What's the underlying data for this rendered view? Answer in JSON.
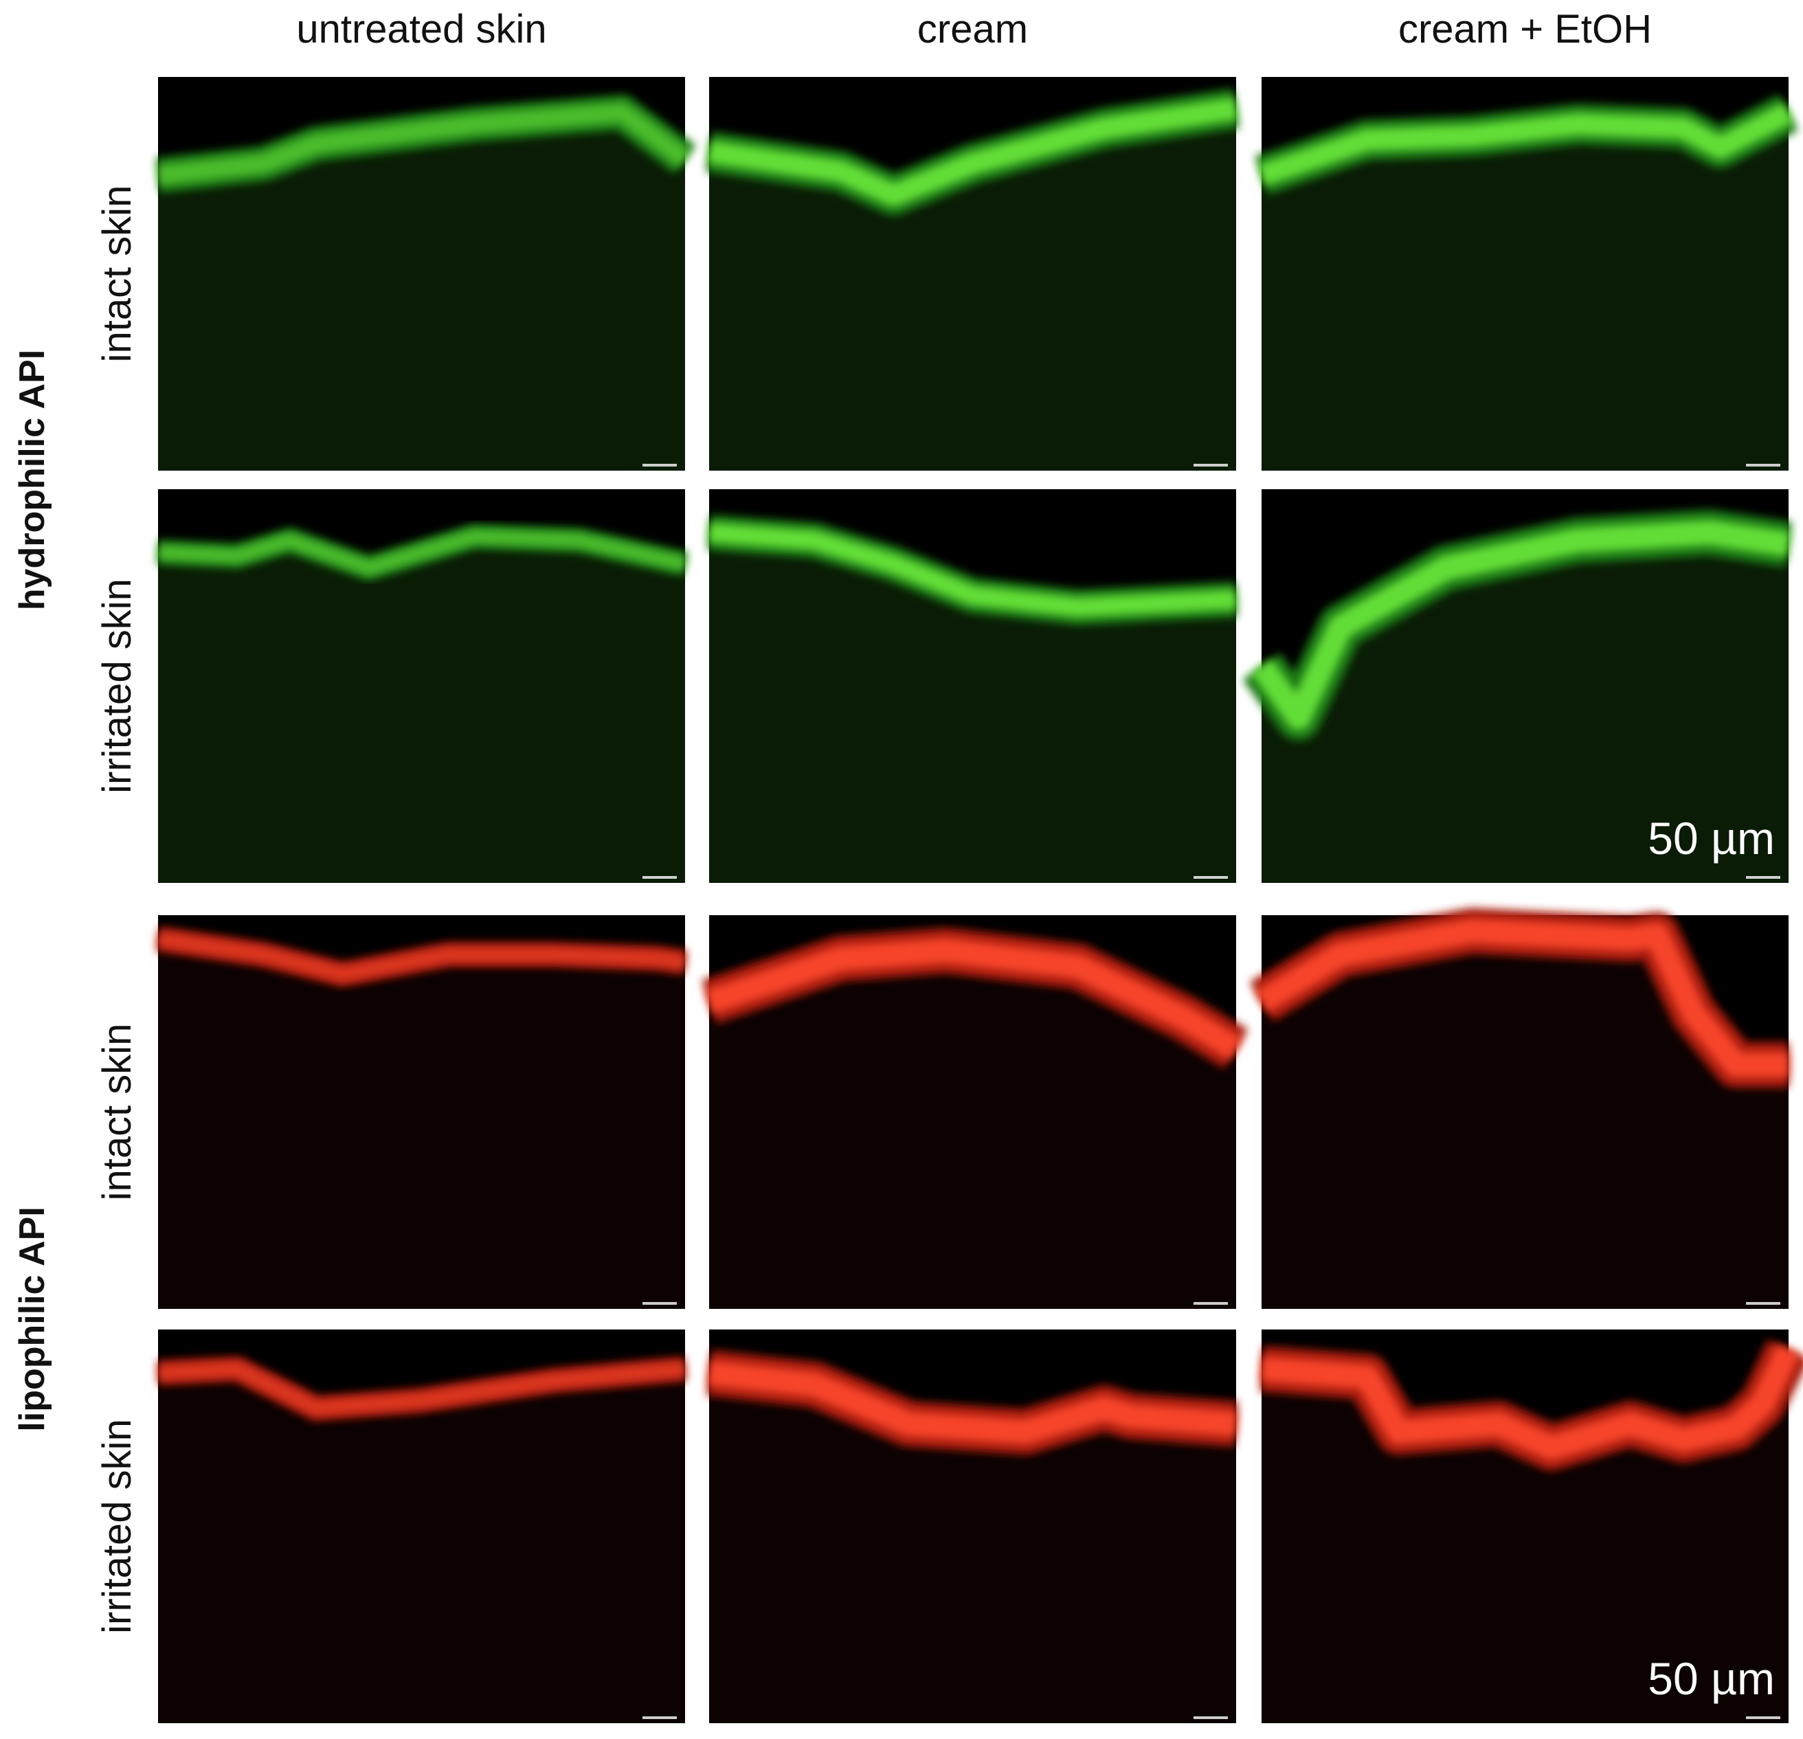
{
  "column_headers": [
    "untreated skin",
    "cream",
    "cream + EtOH"
  ],
  "groups": [
    {
      "label": "hydrophilic API",
      "rows": [
        "intact skin",
        "irritated skin"
      ],
      "scale_bar": "50 µm"
    },
    {
      "label": "lipophilic API",
      "rows": [
        "intact skin",
        "irritated skin"
      ],
      "scale_bar": "50 µm"
    }
  ]
}
